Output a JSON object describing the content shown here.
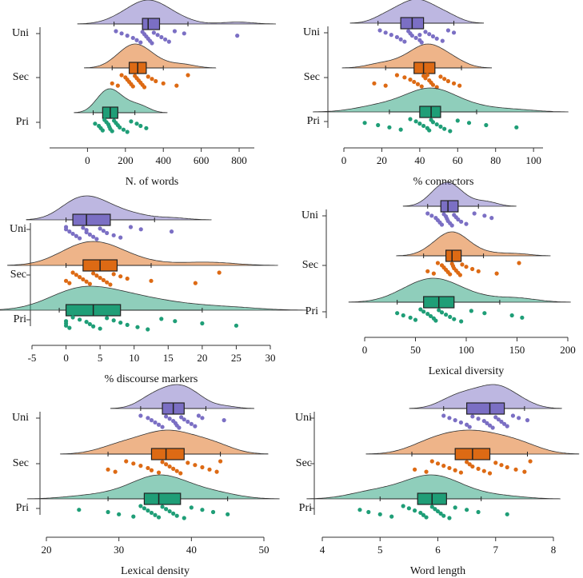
{
  "chart_data": [
    {
      "type": "raincloud",
      "x_label": "N. of words",
      "xlim": [
        -200,
        880
      ],
      "xticks": [
        0,
        200,
        400,
        600,
        800
      ],
      "groups": [
        {
          "name": "Uni",
          "color": "#7b6fc4",
          "box": [
            140,
            290,
            320,
            380,
            530
          ],
          "points": [
            150,
            180,
            210,
            240,
            260,
            280,
            290,
            300,
            310,
            320,
            330,
            340,
            350,
            370,
            390,
            410,
            430,
            460,
            510,
            790
          ]
        },
        {
          "name": "Sec",
          "color": "#dd6a14",
          "box": [
            130,
            220,
            265,
            310,
            400
          ],
          "points": [
            130,
            160,
            180,
            200,
            210,
            220,
            230,
            240,
            250,
            260,
            270,
            280,
            290,
            300,
            320,
            340,
            360,
            400,
            470,
            530
          ]
        },
        {
          "name": "Pri",
          "color": "#1f9e77",
          "box": [
            30,
            80,
            120,
            160,
            250
          ],
          "points": [
            40,
            60,
            70,
            80,
            90,
            100,
            110,
            115,
            120,
            130,
            140,
            150,
            160,
            170,
            190,
            210,
            230,
            260,
            280,
            310
          ]
        }
      ]
    },
    {
      "type": "raincloud",
      "x_label": "% connectors",
      "xlim": [
        0,
        105
      ],
      "xticks": [
        0,
        20,
        40,
        60,
        80,
        100
      ],
      "groups": [
        {
          "name": "Uni",
          "color": "#7b6fc4",
          "box": [
            18,
            30,
            36,
            42,
            58
          ],
          "points": [
            19,
            22,
            25,
            28,
            30,
            32,
            34,
            35,
            36,
            38,
            40,
            41,
            43,
            45,
            47,
            49,
            52,
            55,
            58,
            40
          ]
        },
        {
          "name": "Sec",
          "color": "#dd6a14",
          "box": [
            22,
            37,
            42,
            48,
            62
          ],
          "points": [
            16,
            22,
            28,
            32,
            35,
            37,
            39,
            41,
            42,
            43,
            45,
            46,
            47,
            49,
            51,
            53,
            55,
            58,
            61,
            44
          ]
        },
        {
          "name": "Pri",
          "color": "#1f9e77",
          "box": [
            24,
            40,
            46,
            51,
            70
          ],
          "points": [
            11,
            18,
            24,
            30,
            35,
            38,
            40,
            42,
            44,
            45,
            46,
            47,
            49,
            51,
            53,
            56,
            60,
            66,
            75,
            91
          ]
        }
      ]
    },
    {
      "type": "raincloud",
      "x_label": "% discourse markers",
      "xlim": [
        -5,
        30
      ],
      "xticks": [
        -5,
        0,
        5,
        10,
        15,
        20,
        25,
        30
      ],
      "groups": [
        {
          "name": "Uni",
          "color": "#7b6fc4",
          "box": [
            0,
            1,
            3,
            6.5,
            13
          ],
          "points": [
            0,
            0,
            0.5,
            1,
            1.5,
            2,
            2.5,
            3,
            3,
            3.5,
            4,
            4.5,
            5,
            5.5,
            6,
            7,
            8,
            9.5,
            11,
            15.5
          ]
        },
        {
          "name": "Sec",
          "color": "#dd6a14",
          "box": [
            0,
            2.5,
            5,
            7.5,
            12.5
          ],
          "points": [
            0,
            0.5,
            1,
            1.5,
            2,
            2.5,
            3,
            3.5,
            4,
            4.5,
            5,
            5.5,
            6,
            6.5,
            7,
            8,
            9,
            12.5,
            19,
            22.5
          ]
        },
        {
          "name": "Pri",
          "color": "#1f9e77",
          "box": [
            -1,
            0,
            4,
            8,
            20
          ],
          "points": [
            0,
            0,
            0,
            0.5,
            1,
            2,
            3,
            3.5,
            4,
            5,
            6,
            7,
            8,
            9,
            10.5,
            12,
            14,
            16,
            20,
            25
          ]
        }
      ]
    },
    {
      "type": "raincloud",
      "x_label": "Lexical diversity",
      "xlim": [
        0,
        200
      ],
      "xticks": [
        0,
        50,
        100,
        150,
        200
      ],
      "groups": [
        {
          "name": "Uni",
          "color": "#7b6fc4",
          "box": [
            62,
            75,
            82,
            92,
            112
          ],
          "points": [
            62,
            66,
            70,
            72,
            74,
            76,
            78,
            80,
            81,
            82,
            84,
            86,
            88,
            90,
            92,
            95,
            100,
            108,
            118,
            125
          ]
        },
        {
          "name": "Sec",
          "color": "#dd6a14",
          "box": [
            58,
            80,
            86,
            95,
            117
          ],
          "points": [
            62,
            68,
            72,
            76,
            78,
            80,
            82,
            84,
            86,
            87,
            88,
            90,
            92,
            94,
            96,
            100,
            106,
            112,
            130,
            152
          ]
        },
        {
          "name": "Pri",
          "color": "#1f9e77",
          "box": [
            32,
            58,
            73,
            88,
            133
          ],
          "points": [
            32,
            38,
            45,
            50,
            55,
            58,
            62,
            65,
            68,
            70,
            73,
            76,
            80,
            84,
            88,
            95,
            105,
            118,
            145,
            155
          ]
        }
      ]
    },
    {
      "type": "raincloud",
      "x_label": "Lexical density",
      "xlim": [
        20,
        50
      ],
      "xticks": [
        20,
        30,
        40,
        50
      ],
      "groups": [
        {
          "name": "Uni",
          "color": "#7b6fc4",
          "box": [
            33,
            36,
            37.5,
            39,
            42
          ],
          "points": [
            33,
            34,
            34.5,
            35,
            35.5,
            36,
            36.5,
            37,
            37.5,
            37.8,
            38,
            38.3,
            38.6,
            39,
            39.5,
            40,
            40.5,
            41,
            41.5,
            44.5
          ]
        },
        {
          "name": "Sec",
          "color": "#dd6a14",
          "box": [
            28.5,
            34.5,
            36.5,
            39,
            44
          ],
          "points": [
            28.5,
            29.5,
            31,
            32,
            33,
            34,
            34.5,
            35.5,
            36,
            36.5,
            37,
            37.5,
            38,
            38.5,
            39.5,
            40.5,
            41.5,
            42.5,
            43.5,
            44
          ]
        },
        {
          "name": "Pri",
          "color": "#1f9e77",
          "box": [
            28.5,
            33.5,
            35.5,
            38.5,
            45
          ],
          "points": [
            24.5,
            28.5,
            30,
            32,
            33,
            33.5,
            34,
            34.5,
            35,
            35.5,
            36,
            36.5,
            37,
            37.5,
            38,
            39,
            40,
            41.5,
            43,
            45
          ]
        }
      ]
    },
    {
      "type": "raincloud",
      "x_label": "Word length",
      "xlim": [
        4,
        8
      ],
      "xticks": [
        4,
        5,
        6,
        7,
        8
      ],
      "groups": [
        {
          "name": "Uni",
          "color": "#7b6fc4",
          "box": [
            6.1,
            6.5,
            6.9,
            7.15,
            7.5
          ],
          "points": [
            6.1,
            6.2,
            6.3,
            6.4,
            6.5,
            6.55,
            6.6,
            6.7,
            6.8,
            6.85,
            6.9,
            6.95,
            7.0,
            7.05,
            7.1,
            7.15,
            7.2,
            7.3,
            7.4,
            7.55
          ]
        },
        {
          "name": "Sec",
          "color": "#dd6a14",
          "box": [
            5.55,
            6.3,
            6.6,
            6.9,
            7.55
          ],
          "points": [
            5.6,
            5.8,
            5.9,
            6.0,
            6.1,
            6.2,
            6.3,
            6.4,
            6.5,
            6.55,
            6.6,
            6.7,
            6.8,
            6.9,
            7.0,
            7.1,
            7.2,
            7.35,
            7.5,
            7.6
          ]
        },
        {
          "name": "Pri",
          "color": "#1f9e77",
          "box": [
            5,
            5.65,
            5.9,
            6.15,
            6.75
          ],
          "points": [
            4.65,
            4.8,
            5.0,
            5.2,
            5.4,
            5.5,
            5.6,
            5.7,
            5.75,
            5.8,
            5.9,
            5.95,
            6.0,
            6.05,
            6.1,
            6.2,
            6.3,
            6.5,
            6.7,
            7.2
          ]
        }
      ]
    }
  ]
}
